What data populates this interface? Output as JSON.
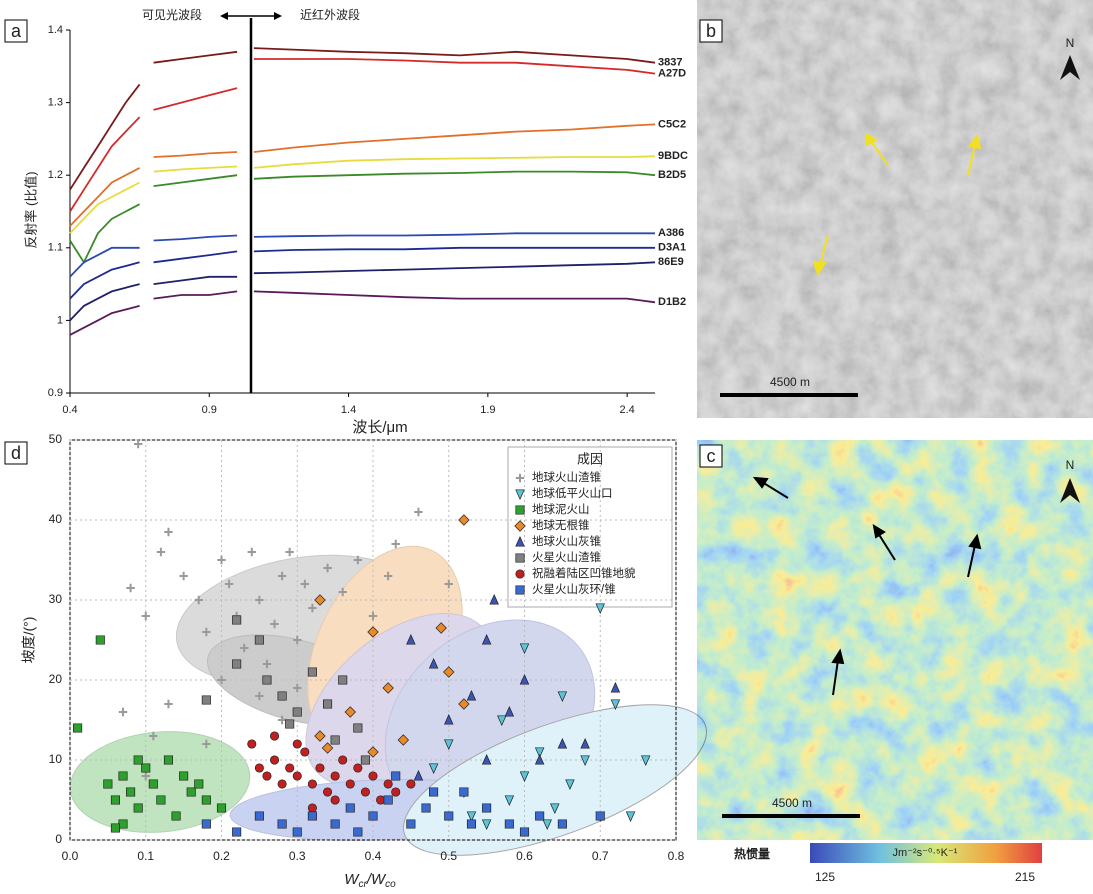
{
  "chart_data": [
    {
      "type": "line",
      "panel_label": "a",
      "annotations": [
        "可见光波段",
        "近红外波段"
      ],
      "x_label": "波长/μm",
      "y_label": "反射率 (比值)",
      "x": [
        0.4,
        0.45,
        0.5,
        0.55,
        0.6,
        0.65,
        0.675,
        0.7,
        0.8,
        0.9,
        1.0,
        1.03,
        1.06,
        1.2,
        1.4,
        1.6,
        1.8,
        2.0,
        2.2,
        2.4,
        2.5
      ],
      "xlim": [
        0.4,
        2.5
      ],
      "xticks": [
        0.4,
        0.9,
        1.4,
        1.9,
        2.4
      ],
      "ylim": [
        0.9,
        1.4
      ],
      "yticks": [
        0.9,
        1,
        1.1,
        1.2,
        1.3,
        1.4
      ],
      "series": [
        {
          "name": "3837",
          "color": "#7b1a1a",
          "values": [
            1.18,
            1.21,
            1.24,
            1.27,
            1.3,
            1.325,
            null,
            1.355,
            1.36,
            1.365,
            1.37,
            null,
            1.375,
            1.373,
            1.37,
            1.368,
            1.365,
            1.37,
            1.365,
            1.36,
            1.355
          ]
        },
        {
          "name": "A27D",
          "color": "#d42a2a",
          "values": [
            1.15,
            1.18,
            1.21,
            1.24,
            1.26,
            1.28,
            null,
            1.29,
            1.3,
            1.31,
            1.32,
            null,
            1.36,
            1.36,
            1.36,
            1.358,
            1.355,
            1.355,
            1.35,
            1.345,
            1.34
          ]
        },
        {
          "name": "C5C2",
          "color": "#e0702a",
          "values": [
            1.13,
            1.15,
            1.17,
            1.19,
            1.2,
            1.21,
            null,
            1.225,
            1.227,
            1.23,
            1.232,
            null,
            1.232,
            1.238,
            1.245,
            1.25,
            1.255,
            1.26,
            1.263,
            1.268,
            1.27
          ]
        },
        {
          "name": "9BDC",
          "color": "#e6dc3c",
          "values": [
            1.12,
            1.14,
            1.16,
            1.17,
            1.18,
            1.19,
            null,
            1.205,
            1.208,
            1.21,
            1.212,
            null,
            1.21,
            1.215,
            1.22,
            1.222,
            1.223,
            1.224,
            1.225,
            1.225,
            1.226
          ]
        },
        {
          "name": "B2D5",
          "color": "#3a8a2a",
          "values": [
            1.11,
            1.08,
            1.12,
            1.14,
            1.15,
            1.16,
            null,
            1.185,
            1.19,
            1.195,
            1.2,
            null,
            1.195,
            1.198,
            1.2,
            1.202,
            1.203,
            1.205,
            1.205,
            1.204,
            1.2
          ]
        },
        {
          "name": "A386",
          "color": "#2a4ab0",
          "values": [
            1.06,
            1.08,
            1.09,
            1.1,
            1.1,
            1.1,
            null,
            1.11,
            1.112,
            1.115,
            1.117,
            null,
            1.115,
            1.116,
            1.117,
            1.117,
            1.118,
            1.12,
            1.12,
            1.12,
            1.12
          ]
        },
        {
          "name": "D3A1",
          "color": "#1e2a90",
          "values": [
            1.03,
            1.05,
            1.06,
            1.07,
            1.075,
            1.08,
            null,
            1.08,
            1.085,
            1.09,
            1.095,
            null,
            1.095,
            1.097,
            1.098,
            1.098,
            1.1,
            1.1,
            1.1,
            1.1,
            1.1
          ]
        },
        {
          "name": "86E9",
          "color": "#20206a",
          "values": [
            1.0,
            1.02,
            1.03,
            1.04,
            1.045,
            1.05,
            null,
            1.05,
            1.055,
            1.06,
            1.06,
            null,
            1.065,
            1.066,
            1.068,
            1.07,
            1.072,
            1.074,
            1.076,
            1.078,
            1.08
          ]
        },
        {
          "name": "D1B2",
          "color": "#5a1a5a",
          "values": [
            0.98,
            0.99,
            1.0,
            1.01,
            1.015,
            1.02,
            null,
            1.03,
            1.035,
            1.035,
            1.04,
            null,
            1.04,
            1.038,
            1.035,
            1.032,
            1.03,
            1.03,
            1.03,
            1.03,
            1.025
          ]
        }
      ]
    },
    {
      "type": "scatter",
      "panel_label": "d",
      "x_label": [
        "W",
        "cr",
        "/W",
        "co"
      ],
      "y_label": "坡度/(°)",
      "legend_title": "成因",
      "legend": "upper right",
      "grid": true,
      "xlim": [
        0,
        0.8
      ],
      "xticks": [
        {
          "value": 0,
          "label": "0.0"
        },
        0.1,
        0.2,
        0.3,
        0.4,
        0.5,
        0.6,
        0.7,
        0.8
      ],
      "ylim": [
        0,
        50
      ],
      "yticks": [
        0,
        10,
        20,
        30,
        40,
        50
      ],
      "series": [
        {
          "name": "地球火山渣锥",
          "color": "#9a9a9a",
          "marker": "plus",
          "x": [
            0.09,
            0.08,
            0.1,
            0.12,
            0.13,
            0.15,
            0.17,
            0.18,
            0.2,
            0.21,
            0.22,
            0.23,
            0.24,
            0.25,
            0.26,
            0.27,
            0.28,
            0.29,
            0.3,
            0.31,
            0.32,
            0.34,
            0.36,
            0.38,
            0.4,
            0.42,
            0.43,
            0.46,
            0.5,
            0.13,
            0.11,
            0.1,
            0.2,
            0.25,
            0.28,
            0.3,
            0.18,
            0.07
          ],
          "values": [
            49.5,
            31.5,
            28,
            36,
            38.5,
            33,
            30,
            26,
            35,
            32,
            28,
            24,
            36,
            30,
            22,
            27,
            33,
            36,
            25,
            32,
            29,
            34,
            31,
            35,
            28,
            33,
            37,
            41,
            32,
            17,
            13,
            8,
            20,
            18,
            15,
            19,
            12,
            16
          ]
        },
        {
          "name": "地球低平火山口",
          "color": "#5ec3d8",
          "marker": "tri_down",
          "x": [
            0.55,
            0.58,
            0.6,
            0.62,
            0.64,
            0.66,
            0.68,
            0.7,
            0.72,
            0.74,
            0.76,
            0.52,
            0.5,
            0.48,
            0.57,
            0.6,
            0.65,
            0.7,
            0.63,
            0.53
          ],
          "values": [
            2,
            5,
            8,
            11,
            4,
            7,
            10,
            29,
            17,
            3,
            10,
            6,
            12,
            9,
            15,
            24,
            18,
            3,
            2,
            3
          ]
        },
        {
          "name": "地球泥火山",
          "color": "#2ea02e",
          "marker": "square",
          "x": [
            0.01,
            0.04,
            0.05,
            0.06,
            0.07,
            0.08,
            0.09,
            0.1,
            0.11,
            0.12,
            0.13,
            0.15,
            0.16,
            0.18,
            0.2,
            0.07,
            0.06,
            0.14,
            0.09,
            0.17
          ],
          "values": [
            14,
            25,
            7,
            5,
            8,
            6,
            4,
            9,
            7,
            5,
            10,
            8,
            6,
            5,
            4,
            2,
            1.5,
            3,
            10,
            7
          ]
        },
        {
          "name": "地球无根锥",
          "color": "#e8892a",
          "marker": "diamond",
          "x": [
            0.52,
            0.33,
            0.4,
            0.49,
            0.5,
            0.52,
            0.42,
            0.44,
            0.33,
            0.34,
            0.4,
            0.37
          ],
          "values": [
            40,
            30,
            26,
            26.5,
            21,
            17,
            19,
            12.5,
            13,
            11.5,
            11,
            16
          ]
        },
        {
          "name": "地球火山灰锥",
          "color": "#3a55b5",
          "marker": "tri_up",
          "x": [
            0.56,
            0.55,
            0.45,
            0.48,
            0.6,
            0.65,
            0.72,
            0.5,
            0.55,
            0.58,
            0.46,
            0.68,
            0.53,
            0.62
          ],
          "values": [
            30,
            25,
            25,
            22,
            20,
            12,
            19,
            15,
            10,
            16,
            8,
            12,
            18,
            10
          ]
        },
        {
          "name": "火星火山渣锥",
          "color": "#808080",
          "marker": "square",
          "x": [
            0.18,
            0.22,
            0.25,
            0.26,
            0.28,
            0.3,
            0.32,
            0.34,
            0.36,
            0.35,
            0.38,
            0.39,
            0.22,
            0.29
          ],
          "values": [
            17.5,
            27.5,
            25,
            20,
            18,
            16,
            21,
            17,
            20,
            12.5,
            14,
            10,
            22,
            14.5
          ]
        },
        {
          "name": "祝融着陆区凹锥地貌",
          "color": "#c02020",
          "marker": "circle",
          "x": [
            0.24,
            0.25,
            0.26,
            0.27,
            0.28,
            0.29,
            0.3,
            0.31,
            0.32,
            0.33,
            0.34,
            0.35,
            0.36,
            0.37,
            0.38,
            0.39,
            0.4,
            0.41,
            0.42,
            0.43,
            0.3,
            0.27,
            0.45,
            0.35,
            0.32
          ],
          "values": [
            12,
            9,
            8,
            10,
            7,
            9,
            8,
            11,
            7,
            9,
            6,
            8,
            10,
            7,
            9,
            6,
            8,
            5,
            7,
            6,
            12,
            13,
            7,
            5,
            4
          ]
        },
        {
          "name": "火星火山灰环/锥",
          "color": "#3a6ad0",
          "marker": "square",
          "x": [
            0.18,
            0.22,
            0.25,
            0.28,
            0.3,
            0.32,
            0.35,
            0.37,
            0.4,
            0.42,
            0.45,
            0.47,
            0.5,
            0.52,
            0.55,
            0.58,
            0.6,
            0.62,
            0.65,
            0.7,
            0.38,
            0.43,
            0.48,
            0.53
          ],
          "values": [
            2,
            1,
            3,
            2,
            1,
            3,
            2,
            4,
            3,
            5,
            2,
            4,
            3,
            6,
            4,
            2,
            1,
            3,
            2,
            3,
            1,
            8,
            6,
            2
          ]
        }
      ]
    }
  ],
  "images": [
    {
      "panel_label": "b",
      "north": "N",
      "scale_bar": "4500 m"
    },
    {
      "panel_label": "c",
      "north": "N",
      "scale_bar": "4500 m",
      "colorbar": {
        "label": "热惯量",
        "unit": "Jm⁻²s⁻⁰·⁵K⁻¹",
        "min": "125",
        "max": "215"
      }
    }
  ]
}
